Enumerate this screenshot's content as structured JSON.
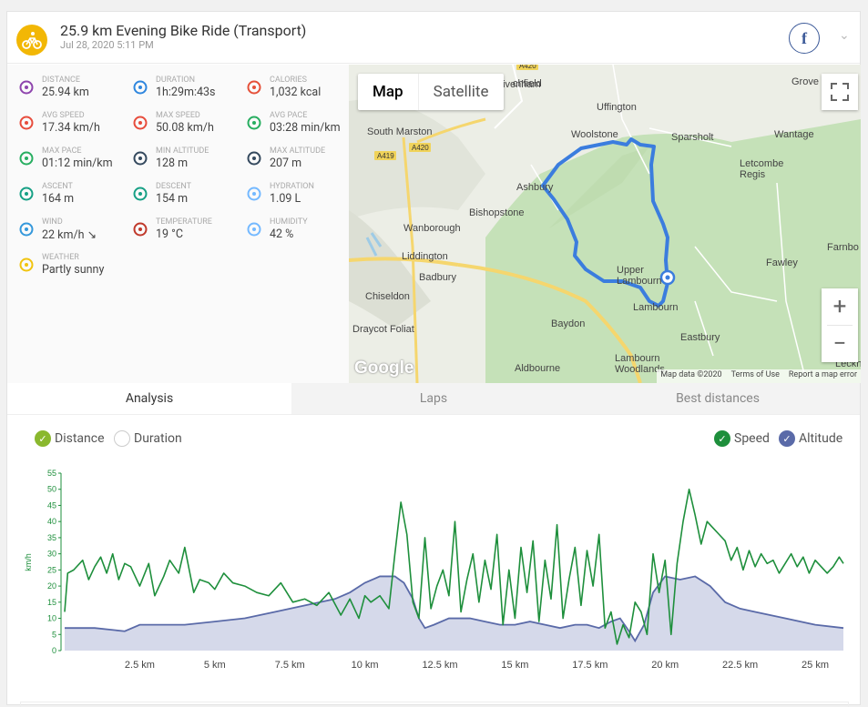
{
  "header": {
    "title": "25.9 km Evening Bike Ride (Transport)",
    "date": "Jul 28, 2020 5:11 PM",
    "facebook_label": "f",
    "colors": {
      "sport_icon": "#f2b705"
    }
  },
  "stats": [
    {
      "label": "DISTANCE",
      "value": "25.94 km",
      "icon": "distance-icon",
      "color": "#8e44ad"
    },
    {
      "label": "DURATION",
      "value": "1h:29m:43s",
      "icon": "stopwatch-icon",
      "color": "#2e86de"
    },
    {
      "label": "CALORIES",
      "value": "1,032 kcal",
      "icon": "flame-icon",
      "color": "#e55039"
    },
    {
      "label": "AVG SPEED",
      "value": "17.34 km/h",
      "icon": "speedometer-icon",
      "color": "#e74c3c"
    },
    {
      "label": "MAX SPEED",
      "value": "50.08 km/h",
      "icon": "speedometer-icon",
      "color": "#e74c3c"
    },
    {
      "label": "AVG PACE",
      "value": "03:28 min/km",
      "icon": "pace-icon",
      "color": "#27ae60"
    },
    {
      "label": "MAX PACE",
      "value": "01:12 min/km",
      "icon": "pace-icon",
      "color": "#27ae60"
    },
    {
      "label": "MIN ALTITUDE",
      "value": "128 m",
      "icon": "mountain-icon",
      "color": "#34495e"
    },
    {
      "label": "MAX ALTITUDE",
      "value": "207 m",
      "icon": "mountain-icon",
      "color": "#34495e"
    },
    {
      "label": "ASCENT",
      "value": "164 m",
      "icon": "ascent-icon",
      "color": "#16a085"
    },
    {
      "label": "DESCENT",
      "value": "154 m",
      "icon": "descent-icon",
      "color": "#16a085"
    },
    {
      "label": "HYDRATION",
      "value": "1.09 L",
      "icon": "drops-icon",
      "color": "#74b9ff"
    },
    {
      "label": "WIND",
      "value": "22 km/h ↘",
      "icon": "wind-icon",
      "color": "#3498db"
    },
    {
      "label": "TEMPERATURE",
      "value": "19 °C",
      "icon": "thermometer-icon",
      "color": "#c0392b"
    },
    {
      "label": "HUMIDITY",
      "value": "42 %",
      "icon": "drops-icon",
      "color": "#74b9ff"
    },
    {
      "label": "WEATHER",
      "value": "Partly sunny",
      "icon": "partly-sunny-icon",
      "color": "#f1c40f"
    }
  ],
  "map": {
    "map_button": "Map",
    "satellite_button": "Satellite",
    "zoom_in": "+",
    "zoom_out": "−",
    "google": "Google",
    "attribution": [
      "Map data ©2020",
      "Terms of Use",
      "Report a map error"
    ],
    "places": [
      {
        "name": "Grove"
      },
      {
        "name": "Uffington"
      },
      {
        "name": "Woolstone"
      },
      {
        "name": "Sparsholt"
      },
      {
        "name": "Wantage"
      },
      {
        "name": "Letcombe\nRegis"
      },
      {
        "name": "South Marston"
      },
      {
        "name": "Shrivenham"
      },
      {
        "name": "Ashbury"
      },
      {
        "name": "Bishopstone"
      },
      {
        "name": "Wanborough"
      },
      {
        "name": "Liddington"
      },
      {
        "name": "Badbury"
      },
      {
        "name": "Chiseldon"
      },
      {
        "name": "Upper\nLambourn"
      },
      {
        "name": "Lambourn"
      },
      {
        "name": "Fawley"
      },
      {
        "name": "Farnbo"
      },
      {
        "name": "Draycot Foliat"
      },
      {
        "name": "Baydon"
      },
      {
        "name": "Eastbury"
      },
      {
        "name": "Lambourn\nWoodlands"
      },
      {
        "name": "Aldbourne"
      },
      {
        "name": "Leckh"
      },
      {
        "name": "chfield"
      }
    ],
    "roads": [
      "A420",
      "A419",
      "A420"
    ],
    "colors": {
      "route": "#3b7dde",
      "green": "#c5e1b8",
      "land": "#eceee6"
    }
  },
  "tabs": [
    {
      "label": "Analysis",
      "active": true
    },
    {
      "label": "Laps",
      "active": false
    },
    {
      "label": "Best distances",
      "active": false
    }
  ],
  "options": {
    "distance": "Distance",
    "duration": "Duration",
    "speed": "Speed",
    "altitude": "Altitude"
  },
  "chart_data": {
    "type": "line",
    "ylabel": "km/h",
    "ylim": [
      0,
      55
    ],
    "yticks": [
      0,
      5,
      10,
      15,
      20,
      25,
      30,
      35,
      40,
      45,
      50,
      55
    ],
    "xlim": [
      0,
      25.94
    ],
    "xticks": [
      "2.5 km",
      "5 km",
      "7.5 km",
      "10 km",
      "12.5 km",
      "15 km",
      "17.5 km",
      "20 km",
      "22.5 km",
      "25 km"
    ],
    "series": [
      {
        "name": "Speed",
        "color": "#1e8f3c",
        "x": [
          0,
          0.1,
          0.3,
          0.6,
          0.8,
          1.0,
          1.2,
          1.4,
          1.6,
          1.8,
          2.0,
          2.2,
          2.5,
          2.8,
          3.0,
          3.3,
          3.5,
          3.8,
          4.0,
          4.3,
          4.5,
          4.8,
          5.0,
          5.3,
          5.6,
          6.0,
          6.4,
          6.8,
          7.2,
          7.6,
          8.0,
          8.4,
          8.8,
          9.2,
          9.5,
          9.8,
          10.0,
          10.2,
          10.5,
          10.8,
          11.0,
          11.2,
          11.4,
          11.6,
          11.8,
          12.0,
          12.2,
          12.4,
          12.6,
          12.8,
          13.0,
          13.2,
          13.4,
          13.6,
          13.8,
          14.0,
          14.2,
          14.4,
          14.6,
          14.8,
          15.0,
          15.2,
          15.4,
          15.6,
          15.8,
          16.0,
          16.2,
          16.4,
          16.6,
          16.8,
          17.0,
          17.2,
          17.4,
          17.6,
          17.8,
          18.0,
          18.2,
          18.4,
          18.6,
          18.8,
          19.0,
          19.2,
          19.4,
          19.6,
          19.8,
          20.0,
          20.2,
          20.4,
          20.6,
          20.8,
          21.0,
          21.2,
          21.4,
          21.6,
          21.8,
          22.0,
          22.2,
          22.4,
          22.6,
          22.8,
          23.0,
          23.2,
          23.4,
          23.6,
          23.8,
          24.0,
          24.2,
          24.4,
          24.6,
          24.8,
          25.0,
          25.2,
          25.4,
          25.6,
          25.8,
          25.94
        ],
        "y": [
          12,
          24,
          25,
          28,
          22,
          26,
          29,
          24,
          30,
          22,
          27,
          26,
          20,
          27,
          17,
          23,
          28,
          24,
          32,
          18,
          22,
          21,
          19,
          24,
          21,
          20,
          18,
          17,
          21,
          15,
          16,
          14,
          18,
          11,
          16,
          10,
          17,
          15,
          17,
          13,
          30,
          46,
          36,
          15,
          10,
          35,
          13,
          20,
          25,
          17,
          40,
          12,
          22,
          30,
          15,
          28,
          19,
          36,
          8,
          25,
          10,
          32,
          18,
          34,
          9,
          28,
          16,
          39,
          10,
          22,
          32,
          14,
          31,
          20,
          36,
          7,
          12,
          2,
          8,
          4,
          15,
          12,
          5,
          30,
          18,
          28,
          5,
          27,
          40,
          50,
          42,
          33,
          40,
          38,
          36,
          34,
          28,
          32,
          25,
          31,
          26,
          30,
          27,
          28,
          24,
          27,
          30,
          26,
          29,
          24,
          28,
          26,
          24,
          26,
          29,
          27
        ]
      },
      {
        "name": "Altitude",
        "color": "#5a6aa8",
        "x": [
          0,
          1.0,
          2.0,
          2.5,
          3.0,
          4.0,
          5.0,
          6.0,
          7.0,
          8.0,
          9.0,
          9.5,
          10.0,
          10.5,
          11.0,
          11.3,
          11.6,
          11.8,
          12.0,
          12.3,
          12.8,
          13.5,
          14.0,
          14.5,
          15.0,
          15.5,
          16.0,
          16.5,
          17.0,
          17.4,
          17.8,
          18.2,
          18.5,
          18.8,
          19.0,
          19.3,
          19.6,
          20.0,
          20.5,
          21.0,
          21.5,
          22.0,
          22.5,
          23.0,
          24.0,
          25.0,
          25.94
        ],
        "y": [
          7,
          7,
          6,
          8,
          8,
          8,
          9,
          10,
          12,
          14,
          16,
          18,
          21,
          23,
          23,
          21,
          16,
          10,
          7,
          8,
          10,
          10,
          9,
          8,
          8,
          9,
          8,
          7,
          8,
          8,
          7,
          9,
          10,
          6,
          3,
          8,
          18,
          23,
          22,
          23,
          20,
          15,
          13,
          12,
          10,
          8,
          7
        ]
      }
    ]
  }
}
